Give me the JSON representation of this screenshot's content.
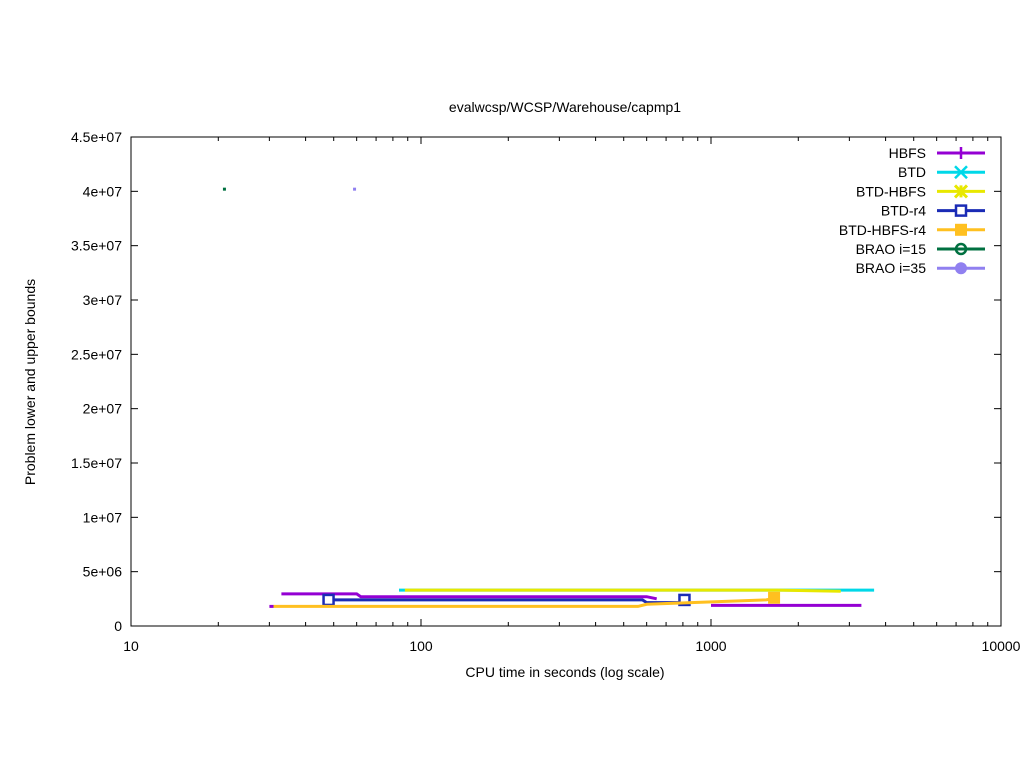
{
  "chart_data": {
    "type": "line",
    "title": "evalwcsp/WCSP/Warehouse/capmp1",
    "xlabel": "CPU time in seconds (log scale)",
    "ylabel": "Problem lower and upper bounds",
    "x_scale": "log",
    "xlim": [
      10,
      10000
    ],
    "ylim": [
      0,
      45000000
    ],
    "x_ticks": [
      10,
      100,
      1000,
      10000
    ],
    "x_tick_labels": [
      "10",
      "100",
      "1000",
      "10000"
    ],
    "y_ticks": [
      0,
      5000000,
      10000000,
      15000000,
      20000000,
      25000000,
      30000000,
      35000000,
      40000000,
      45000000
    ],
    "y_tick_labels": [
      "0",
      "5e+06",
      "1e+07",
      "1.5e+07",
      "2e+07",
      "2.5e+07",
      "3e+07",
      "3.5e+07",
      "4e+07",
      "4.5e+07"
    ],
    "grid": false,
    "legend_position": "top-right",
    "series": [
      {
        "name": "HBFS",
        "color": "#9400d3",
        "marker": "plus",
        "lines": [
          [
            [
              33,
              2950000
            ],
            [
              60,
              2950000
            ],
            [
              62,
              2700000
            ],
            [
              600,
              2700000
            ],
            [
              650,
              2500000
            ]
          ],
          [
            [
              30,
              1800000
            ],
            [
              31,
              1800000
            ]
          ],
          [
            [
              1000,
              1900000
            ],
            [
              3300,
              1900000
            ]
          ]
        ]
      },
      {
        "name": "BTD",
        "color": "#00d8e8",
        "marker": "x",
        "lines": [
          [
            [
              84,
              3300000
            ],
            [
              2900,
              3300000
            ],
            [
              3650,
              3300000
            ]
          ]
        ]
      },
      {
        "name": "BTD-HBFS",
        "color": "#e8e800",
        "marker": "x-bold",
        "lines": [
          [
            [
              88,
              3300000
            ],
            [
              1700,
              3300000
            ],
            [
              2800,
              3200000
            ]
          ]
        ]
      },
      {
        "name": "BTD-r4",
        "color": "#1a2bb5",
        "marker": "square-open",
        "points": [
          [
            48,
            2400000
          ],
          [
            810,
            2400000
          ]
        ],
        "lines": [
          [
            [
              48,
              2400000
            ],
            [
              580,
              2400000
            ],
            [
              600,
              2150000
            ],
            [
              810,
              2150000
            ]
          ]
        ]
      },
      {
        "name": "BTD-HBFS-r4",
        "color": "#ffc020",
        "marker": "square-filled",
        "points": [
          [
            1650,
            2600000
          ]
        ],
        "lines": [
          [
            [
              31,
              1800000
            ],
            [
              560,
              1800000
            ],
            [
              600,
              2000000
            ],
            [
              1550,
              2400000
            ],
            [
              1700,
              2600000
            ]
          ]
        ]
      },
      {
        "name": "BRAO i=15",
        "color": "#007040",
        "marker": "circle-open",
        "points": [
          [
            21,
            40200000
          ]
        ]
      },
      {
        "name": "BRAO i=35",
        "color": "#9080f0",
        "marker": "circle-filled",
        "points": [
          [
            59,
            40200000
          ]
        ]
      }
    ]
  }
}
